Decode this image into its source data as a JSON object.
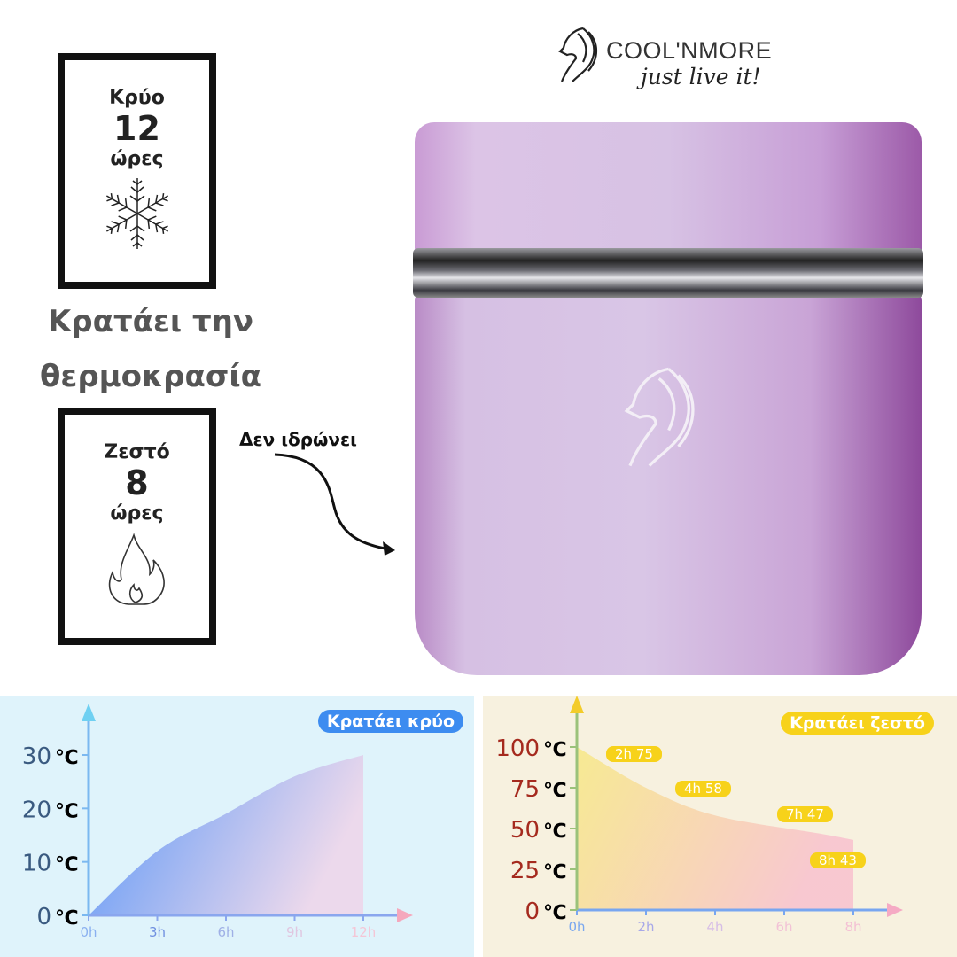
{
  "brand": {
    "name": "COOL'NMORE",
    "slogan": "just live it!"
  },
  "cold_box": {
    "label": "Κρύο",
    "hours": "12",
    "unit": "ώρες",
    "icon": "snowflake-icon"
  },
  "heading": {
    "line1": "Κρατάει την",
    "line2": "θερμοκρασία"
  },
  "hot_box": {
    "label": "Ζεστό",
    "hours": "8",
    "unit": "ώρες",
    "icon": "flame-icon"
  },
  "callout": "Δεν ιδρώνει",
  "product": {
    "color": "#d6c0e3"
  },
  "chart_data": [
    {
      "type": "area",
      "title": "Κρατάει κρύο",
      "x": [
        0,
        3,
        6,
        9,
        12
      ],
      "y": [
        0,
        12,
        19,
        26,
        30
      ],
      "xticks": [
        "0h",
        "3h",
        "6h",
        "9h",
        "12h"
      ],
      "yticks": [
        {
          "value": 0,
          "num": "0",
          "unit": "℃"
        },
        {
          "value": 10,
          "num": "10",
          "unit": "℃"
        },
        {
          "value": 20,
          "num": "20",
          "unit": "℃"
        },
        {
          "value": 30,
          "num": "30",
          "unit": "℃"
        }
      ],
      "xlim": [
        0,
        12
      ],
      "ylim": [
        0,
        30
      ],
      "colors": {
        "fill_start": "#4a8cf7",
        "fill_end": "#eed6ea",
        "background": "#dff3fb",
        "title_bg": "#3d8cf0"
      }
    },
    {
      "type": "area",
      "title": "Κρατάει ζεστό",
      "x": [
        0,
        2,
        4,
        7,
        8
      ],
      "y": [
        100,
        75,
        58,
        47,
        43
      ],
      "xticks": [
        "0h",
        "2h",
        "4h",
        "6h",
        "8h"
      ],
      "xtick_values": [
        0,
        2,
        4,
        6,
        8
      ],
      "yticks": [
        {
          "value": 0,
          "num": "0",
          "unit": "℃"
        },
        {
          "value": 25,
          "num": "25",
          "unit": "℃"
        },
        {
          "value": 50,
          "num": "50",
          "unit": "℃"
        },
        {
          "value": 75,
          "num": "75",
          "unit": "℃"
        },
        {
          "value": 100,
          "num": "100",
          "unit": "℃"
        }
      ],
      "annotations": [
        "2h 75",
        "4h 58",
        "7h 47",
        "8h 43"
      ],
      "xlim": [
        0,
        8
      ],
      "ylim": [
        0,
        100
      ],
      "colors": {
        "fill_start": "#f7e98a",
        "fill_end": "#f8c3cf",
        "background": "#f7f1df",
        "title_bg": "#f7d21a",
        "tick_num": "#a52a1e"
      }
    }
  ]
}
